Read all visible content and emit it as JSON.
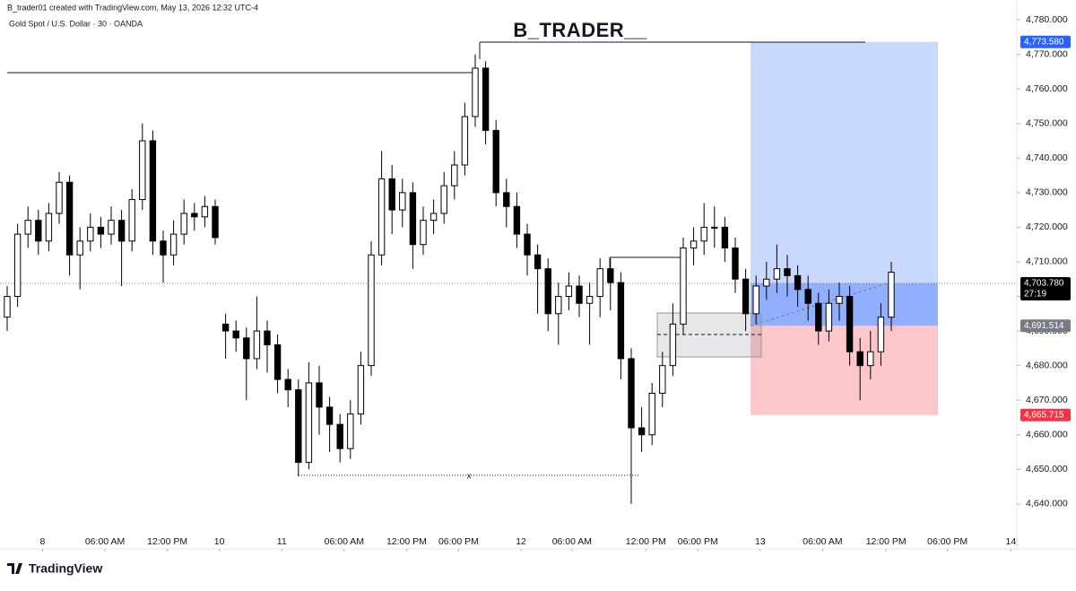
{
  "header": "B_trader01 created with TradingView.com, May 13, 2026 12:32 UTC-4",
  "logo": "TradingView",
  "chart_data": {
    "type": "candlestick",
    "symbol": "Gold Spot / U.S. Dollar · 30 · OANDA",
    "title": "B_TRADER__",
    "marker": "x",
    "x": [
      0,
      1,
      2,
      3,
      4,
      5,
      6,
      7,
      8,
      9,
      10,
      11,
      12,
      13,
      14,
      15,
      16,
      17,
      18,
      19,
      20,
      21,
      22,
      23,
      24,
      25,
      26,
      27,
      28,
      29,
      30,
      31,
      32,
      33,
      34,
      35,
      36,
      37,
      38,
      39,
      40,
      41,
      42,
      43,
      44,
      45,
      46,
      47,
      48,
      49,
      50,
      51,
      52,
      53,
      54,
      55,
      56,
      57,
      58,
      59,
      60,
      61,
      62,
      63,
      64,
      65,
      66,
      67,
      68,
      69,
      70,
      71,
      72,
      73,
      74,
      75,
      76,
      77,
      78,
      79,
      80,
      81,
      82,
      83,
      84,
      85
    ],
    "open": [
      4694,
      4700,
      4718,
      4722,
      4716,
      4724,
      4733,
      4712,
      4716,
      4720,
      4718,
      4722,
      4716,
      4728,
      4745,
      4716,
      4712,
      4718,
      4724,
      4723,
      4726,
      4692,
      4690,
      4688,
      4682,
      4690,
      4686,
      4676,
      4673,
      4652,
      4675,
      4668,
      4663,
      4656,
      4666,
      4680,
      4712,
      4734,
      4725,
      4730,
      4715,
      4722,
      4724,
      4732,
      4738,
      4752,
      4766,
      4748,
      4730,
      4726,
      4718,
      4712,
      4708,
      4695,
      4700,
      4703,
      4698,
      4700,
      4708,
      4704,
      4682,
      4662,
      4660,
      4672,
      4680,
      4692,
      4714,
      4716,
      4720,
      4720,
      4714,
      4705,
      4695,
      4703,
      4705,
      4708,
      4706,
      4702,
      4698,
      4690,
      4698,
      4700,
      4684,
      4680,
      4684,
      4694
    ],
    "high": [
      4703,
      4721,
      4726,
      4725,
      4727,
      4736,
      4735,
      4720,
      4724,
      4723,
      4726,
      4725,
      4731,
      4750,
      4748,
      4719,
      4722,
      4728,
      4727,
      4729,
      4728,
      4695,
      4693,
      4691,
      4700,
      4693,
      4689,
      4679,
      4676,
      4681,
      4680,
      4671,
      4666,
      4670,
      4684,
      4716,
      4742,
      4738,
      4734,
      4733,
      4726,
      4728,
      4736,
      4742,
      4756,
      4770,
      4768,
      4751,
      4734,
      4730,
      4721,
      4715,
      4711,
      4704,
      4707,
      4706,
      4704,
      4711,
      4711,
      4707,
      4685,
      4668,
      4675,
      4684,
      4698,
      4717,
      4720,
      4727,
      4726,
      4723,
      4717,
      4708,
      4706,
      4710,
      4715,
      4712,
      4709,
      4706,
      4701,
      4702,
      4704,
      4703,
      4688,
      4690,
      4698,
      4710
    ],
    "low": [
      4690,
      4697,
      4714,
      4712,
      4713,
      4721,
      4706,
      4702,
      4713,
      4714,
      4715,
      4703,
      4713,
      4725,
      4712,
      4704,
      4709,
      4715,
      4719,
      4720,
      4715,
      4682,
      4684,
      4670,
      4679,
      4678,
      4672,
      4668,
      4648,
      4650,
      4660,
      4655,
      4652,
      4653,
      4663,
      4677,
      4709,
      4718,
      4720,
      4708,
      4712,
      4718,
      4721,
      4728,
      4735,
      4749,
      4744,
      4726,
      4720,
      4714,
      4706,
      4695,
      4690,
      4686,
      4696,
      4694,
      4686,
      4694,
      4696,
      4676,
      4640,
      4655,
      4657,
      4668,
      4677,
      4689,
      4709,
      4712,
      4714,
      4710,
      4701,
      4690,
      4692,
      4699,
      4701,
      4700,
      4697,
      4693,
      4686,
      4687,
      4693,
      4680,
      4670,
      4676,
      4680,
      4690
    ],
    "close": [
      4700,
      4718,
      4722,
      4716,
      4724,
      4733,
      4712,
      4716,
      4720,
      4718,
      4722,
      4716,
      4728,
      4745,
      4716,
      4712,
      4718,
      4724,
      4723,
      4726,
      4717,
      4690,
      4688,
      4682,
      4690,
      4686,
      4676,
      4673,
      4652,
      4675,
      4668,
      4663,
      4656,
      4666,
      4680,
      4712,
      4734,
      4725,
      4730,
      4715,
      4722,
      4724,
      4732,
      4738,
      4752,
      4766,
      4748,
      4730,
      4726,
      4718,
      4712,
      4708,
      4695,
      4700,
      4703,
      4698,
      4700,
      4708,
      4704,
      4682,
      4662,
      4660,
      4672,
      4680,
      4692,
      4714,
      4716,
      4720,
      4720,
      4714,
      4705,
      4695,
      4703,
      4705,
      4708,
      4706,
      4702,
      4698,
      4690,
      4698,
      4700,
      4684,
      4680,
      4684,
      4694,
      4707
    ],
    "up_color": "#ffffff",
    "down_color": "#000000",
    "xlim": [
      -0.69,
      97.07
    ],
    "xticks": [
      {
        "value": 3.4,
        "label": "8"
      },
      {
        "value": 9.4,
        "label": "06:00 AM"
      },
      {
        "value": 15.4,
        "label": "12:00 PM"
      },
      {
        "value": 20.4,
        "label": "10"
      },
      {
        "value": 26.4,
        "label": "11"
      },
      {
        "value": 32.4,
        "label": "06:00 AM"
      },
      {
        "value": 38.4,
        "label": "12:00 PM"
      },
      {
        "value": 43.4,
        "label": "06:00 PM"
      },
      {
        "value": 49.4,
        "label": "12"
      },
      {
        "value": 54.3,
        "label": "06:00 AM"
      },
      {
        "value": 61.4,
        "label": "12:00 PM"
      },
      {
        "value": 66.4,
        "label": "06:00 PM"
      },
      {
        "value": 72.4,
        "label": "13"
      },
      {
        "value": 78.4,
        "label": "06:00 AM"
      },
      {
        "value": 84.5,
        "label": "12:00 PM"
      },
      {
        "value": 90.4,
        "label": "06:00 PM"
      },
      {
        "value": 96.5,
        "label": "14"
      }
    ],
    "ylim": [
      4632.2,
      4785.7
    ],
    "yticks": [
      {
        "value": 4640,
        "label": "4,640.000"
      },
      {
        "value": 4650,
        "label": "4,650.000"
      },
      {
        "value": 4660,
        "label": "4,660.000"
      },
      {
        "value": 4670,
        "label": "4,670.000"
      },
      {
        "value": 4680,
        "label": "4,680.000"
      },
      {
        "value": 4690,
        "label": "4,690.000"
      },
      {
        "value": 4700,
        "label": "4,700.000"
      },
      {
        "value": 4710,
        "label": "4,710.000"
      },
      {
        "value": 4720,
        "label": "4,720.000"
      },
      {
        "value": 4730,
        "label": "4,730.000"
      },
      {
        "value": 4740,
        "label": "4,740.000"
      },
      {
        "value": 4750,
        "label": "4,750.000"
      },
      {
        "value": 4760,
        "label": "4,760.000"
      },
      {
        "value": 4770,
        "label": "4,770.000"
      },
      {
        "value": 4780,
        "label": "4,780.000"
      }
    ],
    "position": {
      "target": {
        "value": 4773.58,
        "label": "4,773.580",
        "color": "#2962ff"
      },
      "entry": {
        "value": 4691.514,
        "label": "4,691.514",
        "color": "#787b86"
      },
      "stop": {
        "value": 4665.715,
        "label": "4,665.715",
        "color": "#f23645"
      }
    },
    "last_price": {
      "value": 4703.78,
      "label": "4,703.780",
      "countdown": "27:19"
    },
    "grid": false
  }
}
